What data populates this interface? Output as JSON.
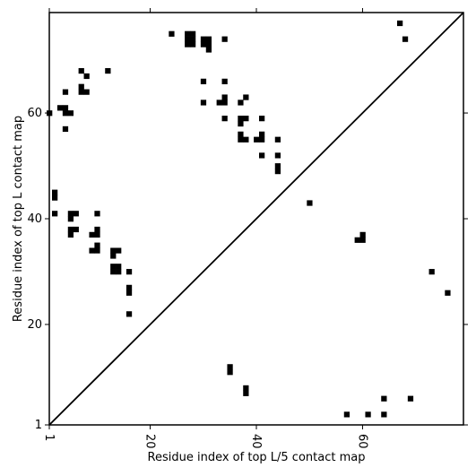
{
  "chart_data": {
    "type": "scatter",
    "subtype": "contact-map",
    "xlabel": "Residue index of top L/5 contact map",
    "ylabel": "Residue index of top L contact map",
    "xlim": [
      1,
      79
    ],
    "ylim": [
      1,
      79
    ],
    "x_ticks": [
      1,
      20,
      40,
      60
    ],
    "y_ticks": [
      1,
      20,
      40,
      60
    ],
    "diagonal": true,
    "grid": false,
    "marker_color": "#000000",
    "top_L_contacts": [
      [
        24,
        75
      ],
      [
        27,
        75
      ],
      [
        28,
        75
      ],
      [
        27,
        74
      ],
      [
        28,
        74
      ],
      [
        27,
        73
      ],
      [
        28,
        73
      ],
      [
        30,
        74
      ],
      [
        31,
        74
      ],
      [
        30,
        73
      ],
      [
        31,
        73
      ],
      [
        31,
        72
      ],
      [
        34,
        74
      ],
      [
        67,
        77
      ],
      [
        68,
        74
      ],
      [
        7,
        68
      ],
      [
        8,
        67
      ],
      [
        12,
        68
      ],
      [
        30,
        66
      ],
      [
        34,
        66
      ],
      [
        7,
        65
      ],
      [
        7,
        64
      ],
      [
        8,
        64
      ],
      [
        4,
        64
      ],
      [
        34,
        63
      ],
      [
        38,
        63
      ],
      [
        30,
        62
      ],
      [
        33,
        62
      ],
      [
        34,
        62
      ],
      [
        37,
        62
      ],
      [
        1,
        60
      ],
      [
        3,
        61
      ],
      [
        4,
        61
      ],
      [
        4,
        60
      ],
      [
        5,
        60
      ],
      [
        34,
        59
      ],
      [
        37,
        59
      ],
      [
        38,
        59
      ],
      [
        41,
        59
      ],
      [
        37,
        58
      ],
      [
        4,
        57
      ],
      [
        37,
        56
      ],
      [
        41,
        56
      ],
      [
        37,
        55
      ],
      [
        38,
        55
      ],
      [
        40,
        55
      ],
      [
        41,
        55
      ],
      [
        44,
        55
      ],
      [
        41,
        52
      ],
      [
        44,
        52
      ],
      [
        44,
        50
      ],
      [
        44,
        49
      ],
      [
        2,
        45
      ],
      [
        2,
        44
      ],
      [
        2,
        41
      ],
      [
        5,
        41
      ],
      [
        6,
        41
      ],
      [
        5,
        40
      ],
      [
        10,
        41
      ],
      [
        5,
        38
      ],
      [
        6,
        38
      ],
      [
        10,
        38
      ],
      [
        5,
        37
      ],
      [
        9,
        37
      ],
      [
        10,
        37
      ],
      [
        10,
        35
      ],
      [
        9,
        34
      ],
      [
        10,
        34
      ],
      [
        13,
        34
      ],
      [
        14,
        34
      ],
      [
        13,
        33
      ],
      [
        13,
        31
      ],
      [
        14,
        31
      ],
      [
        13,
        30
      ],
      [
        14,
        30
      ],
      [
        16,
        30
      ],
      [
        16,
        27
      ],
      [
        16,
        26
      ],
      [
        16,
        22
      ]
    ],
    "top_L5_contacts": [
      [
        50,
        43
      ],
      [
        59,
        36
      ],
      [
        60,
        36
      ],
      [
        60,
        37
      ],
      [
        73,
        30
      ],
      [
        76,
        26
      ],
      [
        35,
        12
      ],
      [
        35,
        11
      ],
      [
        38,
        8
      ],
      [
        38,
        7
      ],
      [
        64,
        6
      ],
      [
        69,
        6
      ],
      [
        57,
        3
      ],
      [
        61,
        3
      ],
      [
        64,
        3
      ]
    ]
  }
}
